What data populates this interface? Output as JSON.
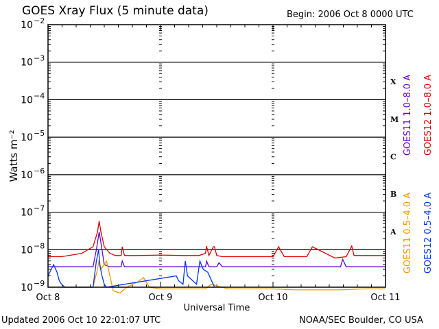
{
  "header": {
    "title": "GOES Xray Flux (5 minute data)",
    "begin": "Begin:  2006 Oct 8 0000 UTC"
  },
  "footer": {
    "updated": "Updated 2006 Oct 10 22:01:07 UTC",
    "credit": "NOAA/SEC Boulder, CO USA"
  },
  "chart_data": {
    "type": "line",
    "title": "GOES Xray Flux (5 minute data)",
    "xlabel": "Universal Time",
    "ylabel": "Watts m⁻²",
    "y_scale": "log",
    "ylim": [
      1e-09,
      0.01
    ],
    "xlim_days": [
      0,
      3
    ],
    "x_tick_labels": [
      "Oct 8",
      "Oct 9",
      "Oct 10",
      "Oct 11"
    ],
    "y_tick_labels": [
      {
        "base": "10",
        "exp": "−2"
      },
      {
        "base": "10",
        "exp": "−3"
      },
      {
        "base": "10",
        "exp": "−4"
      },
      {
        "base": "10",
        "exp": "−5"
      },
      {
        "base": "10",
        "exp": "−6"
      },
      {
        "base": "10",
        "exp": "−7"
      },
      {
        "base": "10",
        "exp": "−8"
      },
      {
        "base": "10",
        "exp": "−9"
      }
    ],
    "flare_classes": [
      "X",
      "M",
      "C",
      "B",
      "A"
    ],
    "grid": true,
    "series": [
      {
        "name": "GOES12 1.0–8.0 A",
        "color": "#dd0000",
        "x": [
          0.0,
          0.12,
          0.3,
          0.4,
          0.44,
          0.455,
          0.47,
          0.5,
          0.55,
          0.6,
          0.65,
          0.66,
          0.68,
          0.7,
          0.8,
          1.0,
          1.2,
          1.34,
          1.4,
          1.41,
          1.43,
          1.47,
          1.48,
          1.5,
          1.55,
          1.6,
          1.8,
          2.0,
          2.05,
          2.1,
          2.3,
          2.35,
          2.55,
          2.65,
          2.7,
          2.72,
          2.85,
          2.9,
          3.0
        ],
        "y": [
          6.5e-09,
          6.5e-09,
          8e-09,
          1.2e-08,
          3e-08,
          5.8e-08,
          3e-08,
          1.2e-08,
          8e-09,
          7e-09,
          7e-09,
          1.2e-08,
          7e-09,
          7e-09,
          7e-09,
          7.2e-09,
          7e-09,
          7e-09,
          8e-09,
          1.25e-08,
          7e-09,
          1.2e-08,
          1.2e-08,
          7e-09,
          6.5e-09,
          6.5e-09,
          6.5e-09,
          6.5e-09,
          1.2e-08,
          6.5e-09,
          6.5e-09,
          1.2e-08,
          6e-09,
          6.5e-09,
          1.25e-08,
          7e-09,
          7e-09,
          7e-09,
          7e-09
        ]
      },
      {
        "name": "GOES11 1.0–8.0 A",
        "color": "#6600cc",
        "x": [
          0.0,
          0.4,
          0.43,
          0.455,
          0.48,
          0.5,
          0.55,
          0.65,
          0.66,
          0.68,
          1.0,
          1.4,
          1.41,
          1.43,
          1.5,
          1.52,
          1.55,
          2.0,
          2.6,
          2.62,
          2.65,
          3.0
        ],
        "y": [
          3.5e-09,
          3.5e-09,
          1e-08,
          3e-08,
          1e-08,
          4e-09,
          3.5e-09,
          3.5e-09,
          5e-09,
          3.5e-09,
          3.5e-09,
          3.5e-09,
          5e-09,
          3.5e-09,
          3.5e-09,
          4.5e-09,
          3.5e-09,
          3.5e-09,
          3.5e-09,
          5.5e-09,
          3.5e-09,
          3.5e-09
        ]
      },
      {
        "name": "GOES11 0.5–4.0 A",
        "color": "#ee9900",
        "x": [
          0.0,
          0.3,
          0.4,
          0.44,
          0.455,
          0.47,
          0.52,
          0.58,
          0.64,
          0.7,
          0.8,
          0.85,
          0.9,
          1.0,
          1.2,
          1.4,
          1.45,
          1.6,
          2.0,
          2.2,
          2.6,
          2.8,
          3.0
        ],
        "y": [
          1e-09,
          1e-09,
          1e-09,
          3e-09,
          5.5e-09,
          3e-09,
          5e-09,
          8e-10,
          7e-10,
          1e-09,
          1.4e-09,
          1.8e-09,
          1e-09,
          9e-10,
          9e-10,
          9e-10,
          1.2e-09,
          9e-10,
          9e-10,
          8.5e-10,
          8.5e-10,
          9e-10,
          9e-10
        ]
      },
      {
        "name": "GOES12 0.5–4.0 A",
        "color": "#0033ee",
        "x": [
          0.0,
          0.05,
          0.08,
          0.1,
          0.12,
          0.15,
          0.2,
          0.4,
          0.43,
          0.45,
          0.46,
          0.48,
          0.5,
          0.52,
          1.14,
          1.16,
          1.2,
          1.22,
          1.24,
          1.32,
          1.35,
          1.38,
          1.42,
          1.48
        ],
        "y": [
          2e-09,
          4e-09,
          2.5e-09,
          1.5e-09,
          1.2e-09,
          1e-09,
          1e-09,
          1e-09,
          5e-09,
          1e-08,
          4e-09,
          2e-09,
          1.2e-09,
          1e-09,
          2e-09,
          1.5e-09,
          1.2e-09,
          5e-09,
          2e-09,
          1.2e-09,
          5e-09,
          3e-09,
          2.5e-09,
          1e-09
        ]
      }
    ]
  }
}
